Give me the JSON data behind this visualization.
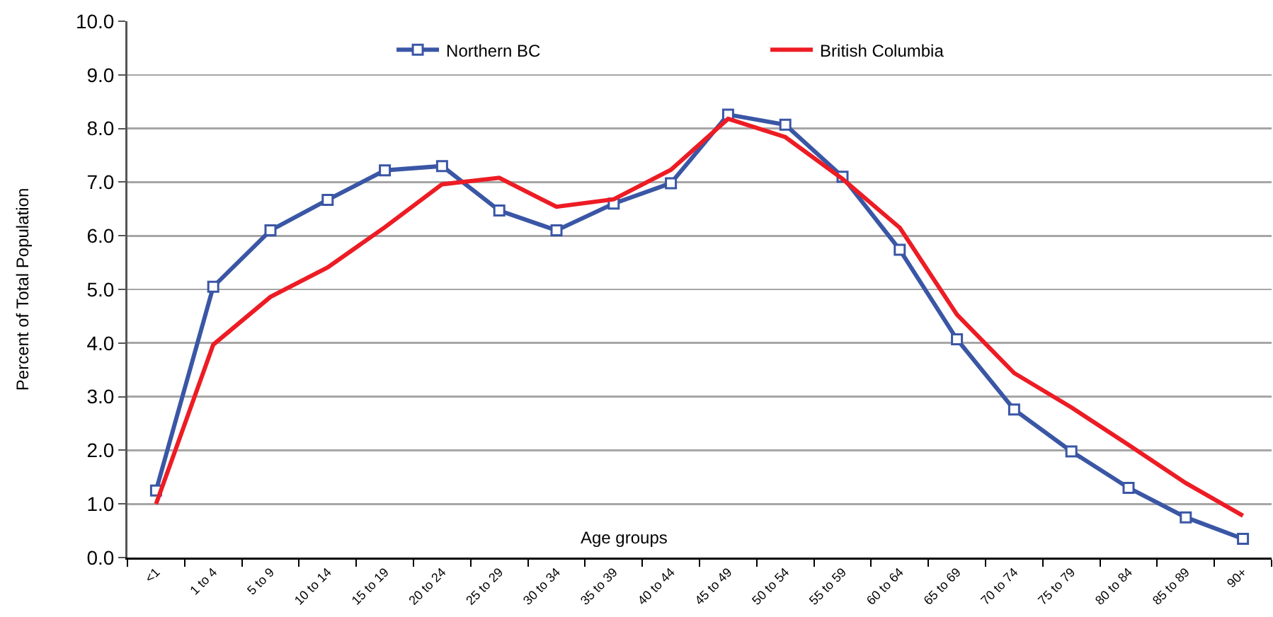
{
  "chart_data": {
    "type": "line",
    "xlabel": "Age groups",
    "ylabel": "Percent of Total Population",
    "categories": [
      "<1",
      "1 to 4",
      "5 to 9",
      "10 to 14",
      "15 to 19",
      "20 to 24",
      "25 to 29",
      "30 to 34",
      "35 to 39",
      "40 to 44",
      "45 to 49",
      "50 to 54",
      "55 to 59",
      "60 to 64",
      "65 to 69",
      "70 to 74",
      "75 to 79",
      "80 to 84",
      "85 to 89",
      "90+"
    ],
    "series": [
      {
        "name": "Northern BC",
        "color": "#3a56a5",
        "marker": "square",
        "values": [
          1.25,
          5.05,
          6.1,
          6.67,
          7.22,
          7.3,
          6.47,
          6.1,
          6.6,
          6.98,
          8.26,
          8.07,
          7.1,
          5.74,
          4.07,
          2.76,
          1.98,
          1.3,
          0.75,
          0.35
        ]
      },
      {
        "name": "British Columbia",
        "color": "#ed1c24",
        "marker": "none",
        "values": [
          1.0,
          3.97,
          4.86,
          5.41,
          6.16,
          6.96,
          7.08,
          6.54,
          6.68,
          7.23,
          8.18,
          7.84,
          7.06,
          6.15,
          4.53,
          3.44,
          2.8,
          2.1,
          1.39,
          0.78
        ]
      }
    ],
    "ylim": [
      0,
      10
    ],
    "yticks": [
      {
        "value": 0,
        "label": "0.0"
      },
      {
        "value": 1,
        "label": "1.0"
      },
      {
        "value": 2,
        "label": "2.0"
      },
      {
        "value": 3,
        "label": "3.0"
      },
      {
        "value": 4,
        "label": "4.0"
      },
      {
        "value": 5,
        "label": "5.0"
      },
      {
        "value": 6,
        "label": "6.0"
      },
      {
        "value": 7,
        "label": "7.0"
      },
      {
        "value": 8,
        "label": "8.0"
      },
      {
        "value": 9,
        "label": "9.0"
      },
      {
        "value": 10,
        "label": "10.0"
      }
    ],
    "grid": "y",
    "legend": "top",
    "line_style": "solid"
  }
}
